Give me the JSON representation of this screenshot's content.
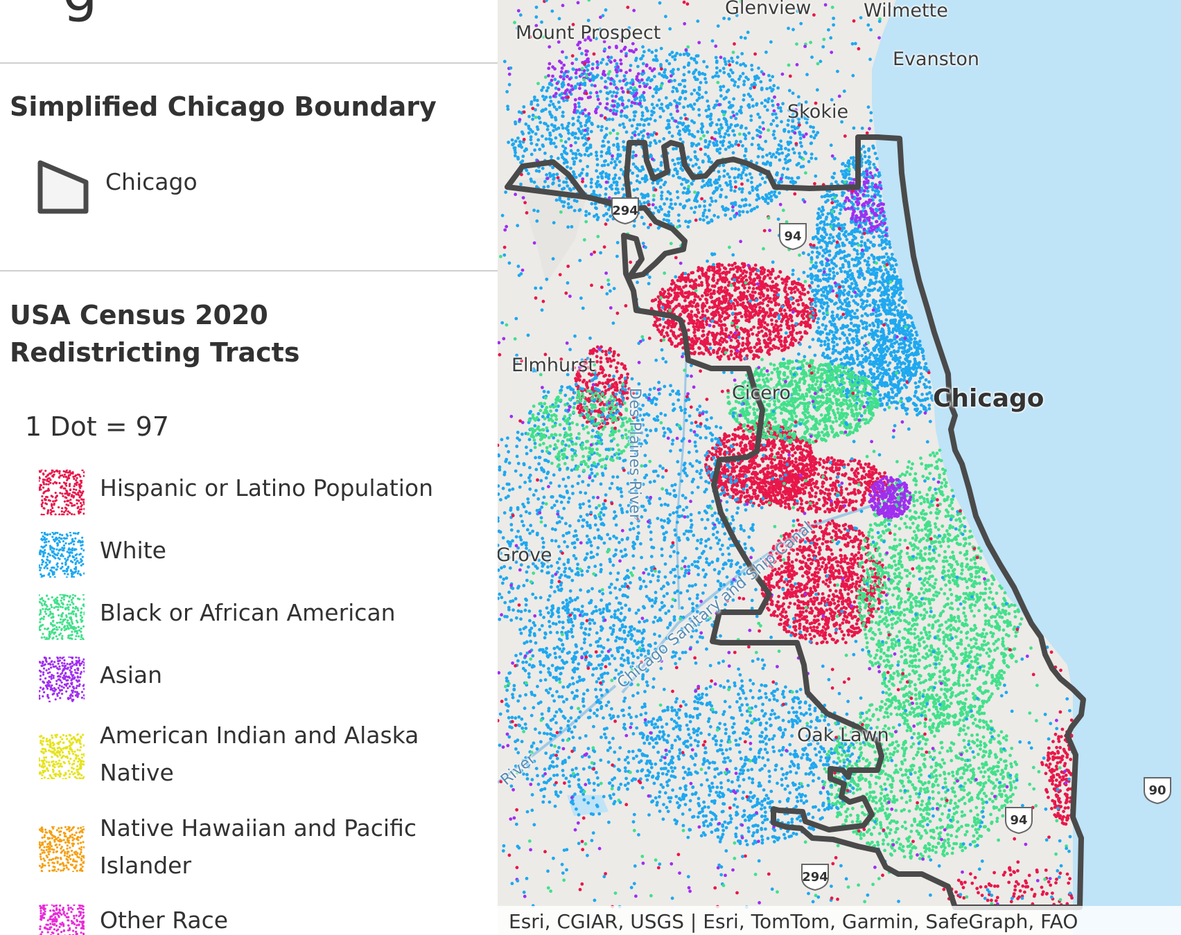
{
  "legend": {
    "top_fragment": "g",
    "layers": [
      {
        "title": "Simplified Chicago Boundary",
        "symbol_label": "Chicago"
      },
      {
        "title": "USA Census 2020 Redistricting Tracts",
        "dot_value": "1 Dot = 97",
        "items": [
          {
            "label": "Hispanic or Latino Population",
            "color": "#e8174a"
          },
          {
            "label": "White",
            "color": "#1ea8f0"
          },
          {
            "label": "Black or African American",
            "color": "#42e08b"
          },
          {
            "label": "Asian",
            "color": "#a02ef0"
          },
          {
            "label": "American Indian and Alaska Native",
            "color": "#e6e31a"
          },
          {
            "label": "Native Hawaiian and Pacific Islander",
            "color": "#f5a012"
          },
          {
            "label": "Other Race",
            "color": "#e82bd8"
          }
        ]
      }
    ]
  },
  "map": {
    "boundary_color": "#4a4a4a",
    "water_color": "#bfe3f7",
    "land_color": "#ecebe7",
    "places": [
      "Glenview",
      "Wilmette",
      "Mount Prospect",
      "Evanston",
      "Skokie",
      "Elmhurst",
      "Chicago",
      "Cicero",
      "Grove",
      "Oak Lawn",
      "Des Plaines River",
      "Chicago Sanitary and Ship Canal",
      "River"
    ],
    "highways": [
      "294",
      "94",
      "94",
      "294",
      "90"
    ],
    "attribution": "Esri, CGIAR, USGS | Esri, TomTom, Garmin, SafeGraph, FAO"
  }
}
